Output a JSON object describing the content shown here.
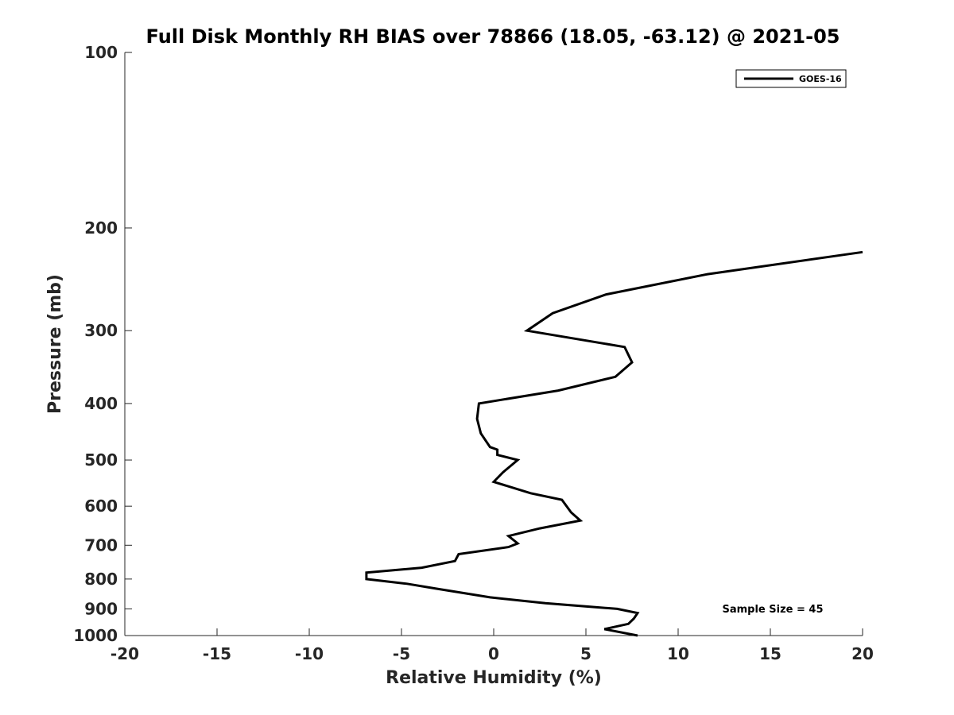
{
  "chart_data": {
    "type": "line",
    "title": "Full Disk Monthly RH BIAS over 78866 (18.05, -63.12) @ 2021-05",
    "xlabel": "Relative Humidity (%)",
    "ylabel": "Pressure (mb)",
    "xlim": [
      -20,
      20
    ],
    "ylim": [
      100,
      1000
    ],
    "y_scale": "log",
    "y_reversed": true,
    "x_ticks": [
      "-20",
      "-15",
      "-10",
      "-5",
      "0",
      "5",
      "10",
      "15",
      "20"
    ],
    "y_ticks": [
      "100",
      "200",
      "300",
      "400",
      "500",
      "600",
      "700",
      "800",
      "900",
      "1000"
    ],
    "grid": false,
    "legend_position": "top-right",
    "series": [
      {
        "name": "GOES-16",
        "color": "#000000",
        "x": [
          20.0,
          11.6,
          6.1,
          3.2,
          1.8,
          7.1,
          7.5,
          6.6,
          3.5,
          -0.8,
          -0.9,
          -0.7,
          -0.2,
          0.2,
          0.2,
          1.3,
          0.5,
          0.0,
          2.0,
          3.7,
          4.2,
          4.7,
          2.5,
          0.8,
          1.3,
          0.8,
          -1.9,
          -2.1,
          -3.9,
          -6.9,
          -6.9,
          -4.7,
          -3.2,
          -0.2,
          2.8,
          6.7,
          7.8,
          7.6,
          7.3,
          6.0,
          7.8
        ],
        "y": [
          220,
          240,
          260,
          280,
          300,
          320,
          340,
          360,
          380,
          400,
          425,
          450,
          475,
          480,
          490,
          500,
          525,
          545,
          570,
          585,
          615,
          635,
          655,
          675,
          695,
          705,
          725,
          745,
          765,
          780,
          800,
          815,
          830,
          860,
          880,
          900,
          915,
          935,
          955,
          975,
          1000
        ]
      }
    ],
    "annotations": [
      "Sample Size = 45"
    ]
  }
}
